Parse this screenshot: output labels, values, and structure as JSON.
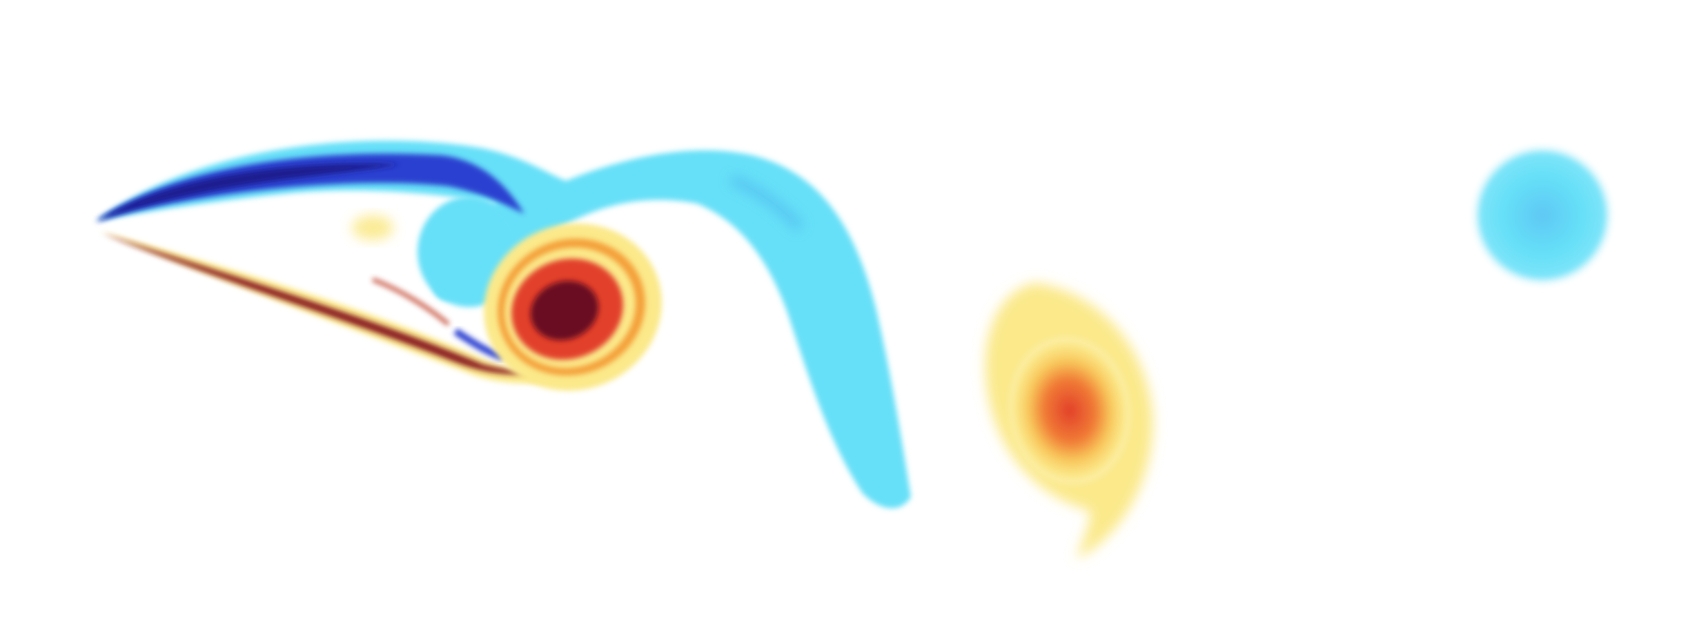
{
  "figure": {
    "subject": "vorticity-field",
    "colormap": {
      "negative_strong": "#1a1a8f",
      "negative_mid": "#2a3fd0",
      "negative_weak": "#66e0f8",
      "neutral": "#ffffff",
      "positive_weak": "#fbe98a",
      "positive_mid": "#f4a03a",
      "positive_strong": "#e2402a",
      "positive_peak": "#6a1020"
    }
  }
}
